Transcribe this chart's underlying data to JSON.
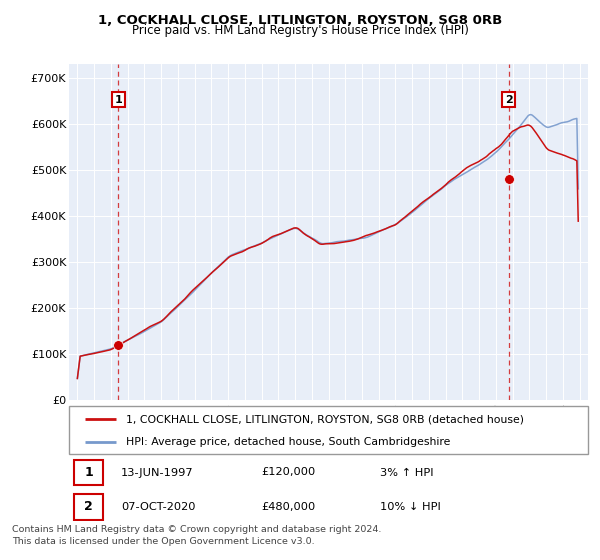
{
  "title1": "1, COCKHALL CLOSE, LITLINGTON, ROYSTON, SG8 0RB",
  "title2": "Price paid vs. HM Land Registry's House Price Index (HPI)",
  "bg_color": "#e8eef8",
  "line1_color": "#cc1111",
  "line2_color": "#7799cc",
  "marker_color": "#cc0000",
  "annotation1_year": 1997.45,
  "annotation1_value": 120000,
  "annotation2_year": 2020.77,
  "annotation2_value": 480000,
  "yticks": [
    0,
    100000,
    200000,
    300000,
    400000,
    500000,
    600000,
    700000
  ],
  "ytick_labels": [
    "£0",
    "£100K",
    "£200K",
    "£300K",
    "£400K",
    "£500K",
    "£600K",
    "£700K"
  ],
  "xmin": 1994.5,
  "xmax": 2025.5,
  "ymin": 0,
  "ymax": 730000,
  "legend1": "1, COCKHALL CLOSE, LITLINGTON, ROYSTON, SG8 0RB (detached house)",
  "legend2": "HPI: Average price, detached house, South Cambridgeshire",
  "footer": "Contains HM Land Registry data © Crown copyright and database right 2024.\nThis data is licensed under the Open Government Licence v3.0.",
  "table_row1": [
    "1",
    "13-JUN-1997",
    "£120,000",
    "3% ↑ HPI"
  ],
  "table_row2": [
    "2",
    "07-OCT-2020",
    "£480,000",
    "10% ↓ HPI"
  ]
}
